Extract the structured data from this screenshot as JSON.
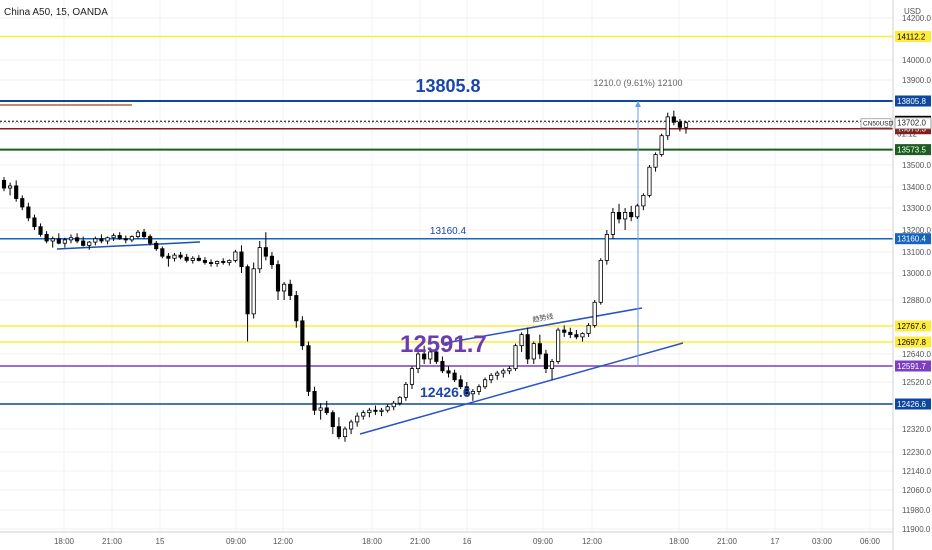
{
  "header": {
    "title": "China A50, 15, OANDA",
    "currency": "USD"
  },
  "chart_data": {
    "type": "candlestick",
    "symbol": "CN50USD",
    "countdown": "01:12",
    "ylim": [
      11900,
      14220
    ],
    "y_ticks": [
      14200.0,
      14000.0,
      13900.0,
      13500.0,
      13400.0,
      13300.0,
      13200.0,
      13100.0,
      13000.0,
      12880.0,
      12640.0,
      12520.0,
      12320.0,
      12230.0,
      12140.0,
      12060.0,
      11980.0,
      11900.0
    ],
    "y_tick_labels": [
      "14200.0",
      "14000.0",
      "13900.0",
      "13500.0",
      "13400.0",
      "13300.0",
      "13200.0",
      "13100.0",
      "13000.0",
      "12880.0",
      "12640.0",
      "12520.0",
      "12320.0",
      "12230.0",
      "12140.0",
      "12060.0",
      "11980.0",
      "11900.0"
    ],
    "x_tick_labels": [
      "18:00",
      "21:00",
      "15",
      "09:00",
      "12:00",
      "18:00",
      "21:00",
      "16",
      "09:00",
      "12:00",
      "18:00",
      "21:00",
      "17",
      "03:00",
      "06:00"
    ],
    "horizontal_levels": [
      {
        "value": 14112.2,
        "label": "14112.2",
        "color": "#ffeb3b",
        "text_color": "#000000"
      },
      {
        "value": 13805.8,
        "label": "13805.8",
        "color": "#0d47a1",
        "text_color": "#ffffff"
      },
      {
        "value": 13708.8,
        "label": "13708.8",
        "color": "#000000",
        "text_color": "#ffffff"
      },
      {
        "value": 13673.3,
        "label": "13673.3",
        "color": "#8b1a1a",
        "text_color": "#ffffff"
      },
      {
        "value": 13573.5,
        "label": "13573.5",
        "color": "#1b5e20",
        "text_color": "#ffffff"
      },
      {
        "value": 13160.4,
        "label": "13160.4",
        "color": "#1565c0",
        "text_color": "#ffffff"
      },
      {
        "value": 12767.6,
        "label": "12767.6",
        "color": "#ffeb3b",
        "text_color": "#000000"
      },
      {
        "value": 12697.8,
        "label": "12697.8",
        "color": "#ffeb3b",
        "text_color": "#000000"
      },
      {
        "value": 12591.7,
        "label": "12591.7",
        "color": "#7b3fbf",
        "text_color": "#ffffff"
      },
      {
        "value": 12426.6,
        "label": "12426.6",
        "color": "#0d47a1",
        "text_color": "#ffffff"
      }
    ],
    "current_price": {
      "value": 13702.0,
      "label": "13702.0"
    },
    "annotations": {
      "big_top": "13805.8",
      "mid": "13160.4",
      "purple": "12591.7",
      "low": "12426.6",
      "measure": "1210.0 (9.61%) 12100",
      "trend_label": "趋势线"
    },
    "candles": [
      [
        13430,
        13445,
        13380,
        13395
      ],
      [
        13395,
        13420,
        13360,
        13405
      ],
      [
        13405,
        13430,
        13330,
        13345
      ],
      [
        13345,
        13360,
        13290,
        13305
      ],
      [
        13305,
        13325,
        13240,
        13255
      ],
      [
        13255,
        13270,
        13200,
        13215
      ],
      [
        13215,
        13230,
        13170,
        13180
      ],
      [
        13180,
        13195,
        13140,
        13150
      ],
      [
        13150,
        13170,
        13120,
        13160
      ],
      [
        13160,
        13185,
        13135,
        13140
      ],
      [
        13140,
        13165,
        13120,
        13155
      ],
      [
        13155,
        13180,
        13140,
        13165
      ],
      [
        13165,
        13185,
        13140,
        13150
      ],
      [
        13150,
        13170,
        13125,
        13130
      ],
      [
        13130,
        13150,
        13110,
        13145
      ],
      [
        13145,
        13170,
        13130,
        13160
      ],
      [
        13160,
        13180,
        13140,
        13150
      ],
      [
        13150,
        13170,
        13135,
        13165
      ],
      [
        13165,
        13185,
        13150,
        13175
      ],
      [
        13175,
        13190,
        13155,
        13160
      ],
      [
        13160,
        13175,
        13140,
        13155
      ],
      [
        13155,
        13175,
        13145,
        13170
      ],
      [
        13170,
        13200,
        13160,
        13190
      ],
      [
        13190,
        13205,
        13160,
        13170
      ],
      [
        13170,
        13180,
        13130,
        13140
      ],
      [
        13140,
        13150,
        13105,
        13115
      ],
      [
        13115,
        13125,
        13070,
        13080
      ],
      [
        13080,
        13095,
        13030,
        13070
      ],
      [
        13070,
        13095,
        13055,
        13085
      ],
      [
        13085,
        13100,
        13065,
        13075
      ],
      [
        13075,
        13090,
        13050,
        13060
      ],
      [
        13060,
        13080,
        13045,
        13070
      ],
      [
        13070,
        13085,
        13055,
        13060
      ],
      [
        13060,
        13075,
        13040,
        13050
      ],
      [
        13050,
        13065,
        13030,
        13045
      ],
      [
        13045,
        13060,
        13030,
        13055
      ],
      [
        13055,
        13070,
        13040,
        13050
      ],
      [
        13050,
        13065,
        13035,
        13060
      ],
      [
        13060,
        13110,
        13050,
        13100
      ],
      [
        13100,
        13130,
        13000,
        13030
      ],
      [
        13030,
        13040,
        12700,
        12820
      ],
      [
        12820,
        13050,
        12800,
        13020
      ],
      [
        13020,
        13150,
        13000,
        13120
      ],
      [
        13120,
        13190,
        13060,
        13080
      ],
      [
        13080,
        13100,
        13020,
        13040
      ],
      [
        13040,
        13060,
        12880,
        12920
      ],
      [
        12920,
        12960,
        12880,
        12950
      ],
      [
        12950,
        12970,
        12880,
        12900
      ],
      [
        12900,
        12920,
        12760,
        12790
      ],
      [
        12790,
        12810,
        12660,
        12680
      ],
      [
        12680,
        12700,
        12460,
        12480
      ],
      [
        12480,
        12500,
        12380,
        12400
      ],
      [
        12400,
        12430,
        12360,
        12410
      ],
      [
        12410,
        12440,
        12380,
        12390
      ],
      [
        12390,
        12400,
        12300,
        12330
      ],
      [
        12330,
        12370,
        12280,
        12290
      ],
      [
        12290,
        12330,
        12270,
        12320
      ],
      [
        12320,
        12360,
        12300,
        12350
      ],
      [
        12350,
        12390,
        12330,
        12375
      ],
      [
        12375,
        12400,
        12360,
        12390
      ],
      [
        12390,
        12410,
        12370,
        12400
      ],
      [
        12400,
        12420,
        12380,
        12395
      ],
      [
        12395,
        12410,
        12375,
        12400
      ],
      [
        12400,
        12425,
        12390,
        12415
      ],
      [
        12415,
        12440,
        12400,
        12430
      ],
      [
        12430,
        12460,
        12420,
        12455
      ],
      [
        12455,
        12520,
        12440,
        12510
      ],
      [
        12510,
        12590,
        12490,
        12580
      ],
      [
        12580,
        12650,
        12560,
        12640
      ],
      [
        12640,
        12680,
        12600,
        12620
      ],
      [
        12620,
        12660,
        12600,
        12650
      ],
      [
        12650,
        12670,
        12600,
        12610
      ],
      [
        12610,
        12630,
        12560,
        12570
      ],
      [
        12570,
        12590,
        12540,
        12560
      ],
      [
        12560,
        12575,
        12520,
        12530
      ],
      [
        12530,
        12550,
        12490,
        12500
      ],
      [
        12500,
        12520,
        12460,
        12470
      ],
      [
        12470,
        12490,
        12440,
        12480
      ],
      [
        12480,
        12510,
        12465,
        12500
      ],
      [
        12500,
        12540,
        12490,
        12530
      ],
      [
        12530,
        12560,
        12515,
        12550
      ],
      [
        12550,
        12570,
        12530,
        12560
      ],
      [
        12560,
        12580,
        12540,
        12570
      ],
      [
        12570,
        12590,
        12555,
        12580
      ],
      [
        12580,
        12690,
        12570,
        12680
      ],
      [
        12680,
        12740,
        12650,
        12730
      ],
      [
        12730,
        12760,
        12600,
        12620
      ],
      [
        12620,
        12700,
        12600,
        12690
      ],
      [
        12690,
        12730,
        12620,
        12640
      ],
      [
        12640,
        12660,
        12560,
        12580
      ],
      [
        12580,
        12620,
        12530,
        12610
      ],
      [
        12610,
        12760,
        12600,
        12750
      ],
      [
        12750,
        12770,
        12720,
        12740
      ],
      [
        12740,
        12760,
        12715,
        12730
      ],
      [
        12730,
        12750,
        12710,
        12720
      ],
      [
        12720,
        12740,
        12700,
        12735
      ],
      [
        12735,
        12780,
        12720,
        12770
      ],
      [
        12770,
        12880,
        12760,
        12870
      ],
      [
        12870,
        13070,
        12860,
        13060
      ],
      [
        13060,
        13200,
        13040,
        13180
      ],
      [
        13180,
        13300,
        13160,
        13280
      ],
      [
        13280,
        13320,
        13230,
        13250
      ],
      [
        13250,
        13300,
        13200,
        13280
      ],
      [
        13280,
        13310,
        13240,
        13260
      ],
      [
        13260,
        13320,
        13250,
        13310
      ],
      [
        13310,
        13370,
        13290,
        13360
      ],
      [
        13360,
        13500,
        13350,
        13490
      ],
      [
        13490,
        13560,
        13470,
        13550
      ],
      [
        13550,
        13650,
        13540,
        13640
      ],
      [
        13640,
        13750,
        13620,
        13730
      ],
      [
        13730,
        13760,
        13690,
        13705
      ],
      [
        13705,
        13720,
        13660,
        13680
      ],
      [
        13680,
        13710,
        13650,
        13702
      ]
    ]
  }
}
